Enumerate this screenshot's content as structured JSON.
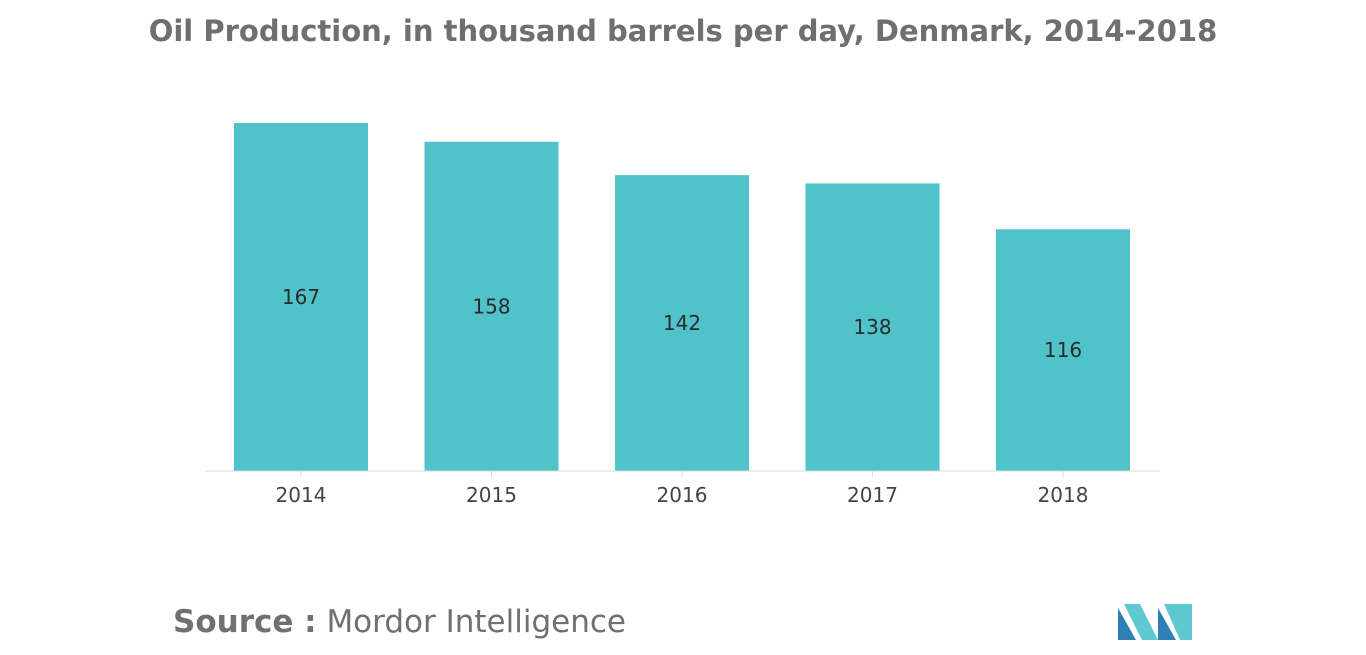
{
  "colors": {
    "bar": "#4fc3c9",
    "title": "#6f6f6f",
    "source": "#707070",
    "logo_dark": "#2f7fb6",
    "logo_light": "#5ec8d0"
  },
  "source": {
    "label": "Source :",
    "value": "Mordor Intelligence"
  },
  "logo": {
    "icon": "mordor-intelligence-logo-icon"
  },
  "chart_data": {
    "type": "bar",
    "title": "Oil Production, in thousand barrels per day, Denmark, 2014-2018",
    "categories": [
      "2014",
      "2015",
      "2016",
      "2017",
      "2018"
    ],
    "values": [
      167,
      158,
      142,
      138,
      116
    ],
    "xlabel": "",
    "ylabel": "",
    "ylim": [
      0,
      167
    ],
    "grid": false,
    "legend": "none",
    "data_labels": "inside-center"
  }
}
